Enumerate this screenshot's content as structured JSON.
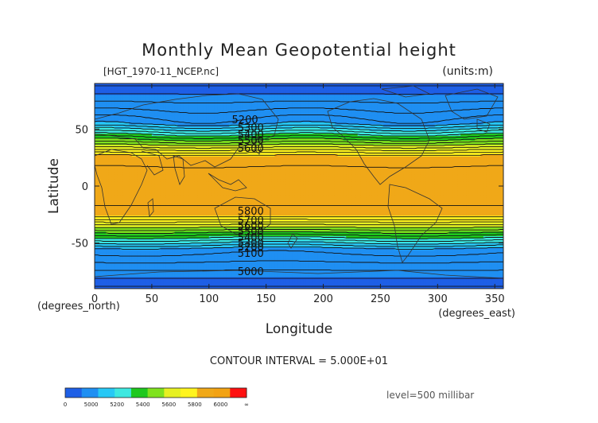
{
  "chart_data": {
    "type": "contour",
    "title": "Monthly Mean Geopotential height",
    "file_label": "[HGT_1970-11_NCEP.nc]",
    "units_label": "(units:m)",
    "xlabel": "Longitude",
    "ylabel": "Latitude",
    "x_unit_label": "(degrees_east)",
    "y_unit_label": "(degrees_north)",
    "xlim": [
      0,
      357.5
    ],
    "ylim": [
      -90,
      90
    ],
    "xticks": [
      0,
      50,
      100,
      150,
      200,
      250,
      300,
      350
    ],
    "yticks": [
      50,
      0,
      -50
    ],
    "contour_interval_text": "CONTOUR INTERVAL = 5.000E+01",
    "level_text": "level=500 millibar",
    "color_levels": [
      {
        "min": 4900,
        "max": 5000,
        "color": "#1e5fe6"
      },
      {
        "min": 5000,
        "max": 5200,
        "color": "#1f8ff2"
      },
      {
        "min": 5200,
        "max": 5300,
        "color": "#27c8f5"
      },
      {
        "min": 5300,
        "max": 5400,
        "color": "#3de8e0"
      },
      {
        "min": 5400,
        "max": 5500,
        "color": "#1ec81e"
      },
      {
        "min": 5500,
        "max": 5600,
        "color": "#7fe21e"
      },
      {
        "min": 5600,
        "max": 5700,
        "color": "#e6f022"
      },
      {
        "min": 5700,
        "max": 5800,
        "color": "#fff41e"
      },
      {
        "min": 5800,
        "max": 5900,
        "color": "#f0a818"
      },
      {
        "min": 5900,
        "max": 6100,
        "color": "#f2a213"
      }
    ],
    "contour_labels": [
      {
        "text": "5200",
        "lon": 120,
        "lat": 55
      },
      {
        "text": "5300",
        "lon": 125,
        "lat": 48
      },
      {
        "text": "5400",
        "lon": 125,
        "lat": 42
      },
      {
        "text": "5500",
        "lon": 125,
        "lat": 37
      },
      {
        "text": "5600",
        "lon": 125,
        "lat": 30
      },
      {
        "text": "5800",
        "lon": 125,
        "lat": -25
      },
      {
        "text": "5700",
        "lon": 125,
        "lat": -33
      },
      {
        "text": "5600",
        "lon": 125,
        "lat": -38
      },
      {
        "text": "5500",
        "lon": 125,
        "lat": -43
      },
      {
        "text": "5400",
        "lon": 125,
        "lat": -48
      },
      {
        "text": "5300",
        "lon": 125,
        "lat": -53
      },
      {
        "text": "5200",
        "lon": 125,
        "lat": -57
      },
      {
        "text": "5100",
        "lon": 125,
        "lat": -62
      },
      {
        "text": "5000",
        "lon": 125,
        "lat": -78
      }
    ],
    "colorbar": {
      "colors": [
        "#1e5fe6",
        "#1f8ff2",
        "#27c8f5",
        "#3de8e0",
        "#1ec81e",
        "#7fe21e",
        "#e6f022",
        "#fff41e",
        "#f0a818",
        "#f2a213",
        "#ff1010"
      ],
      "tick_labels": [
        "0",
        "5000",
        "5200",
        "5400",
        "5600",
        "5800",
        "6000",
        "∞"
      ]
    }
  }
}
